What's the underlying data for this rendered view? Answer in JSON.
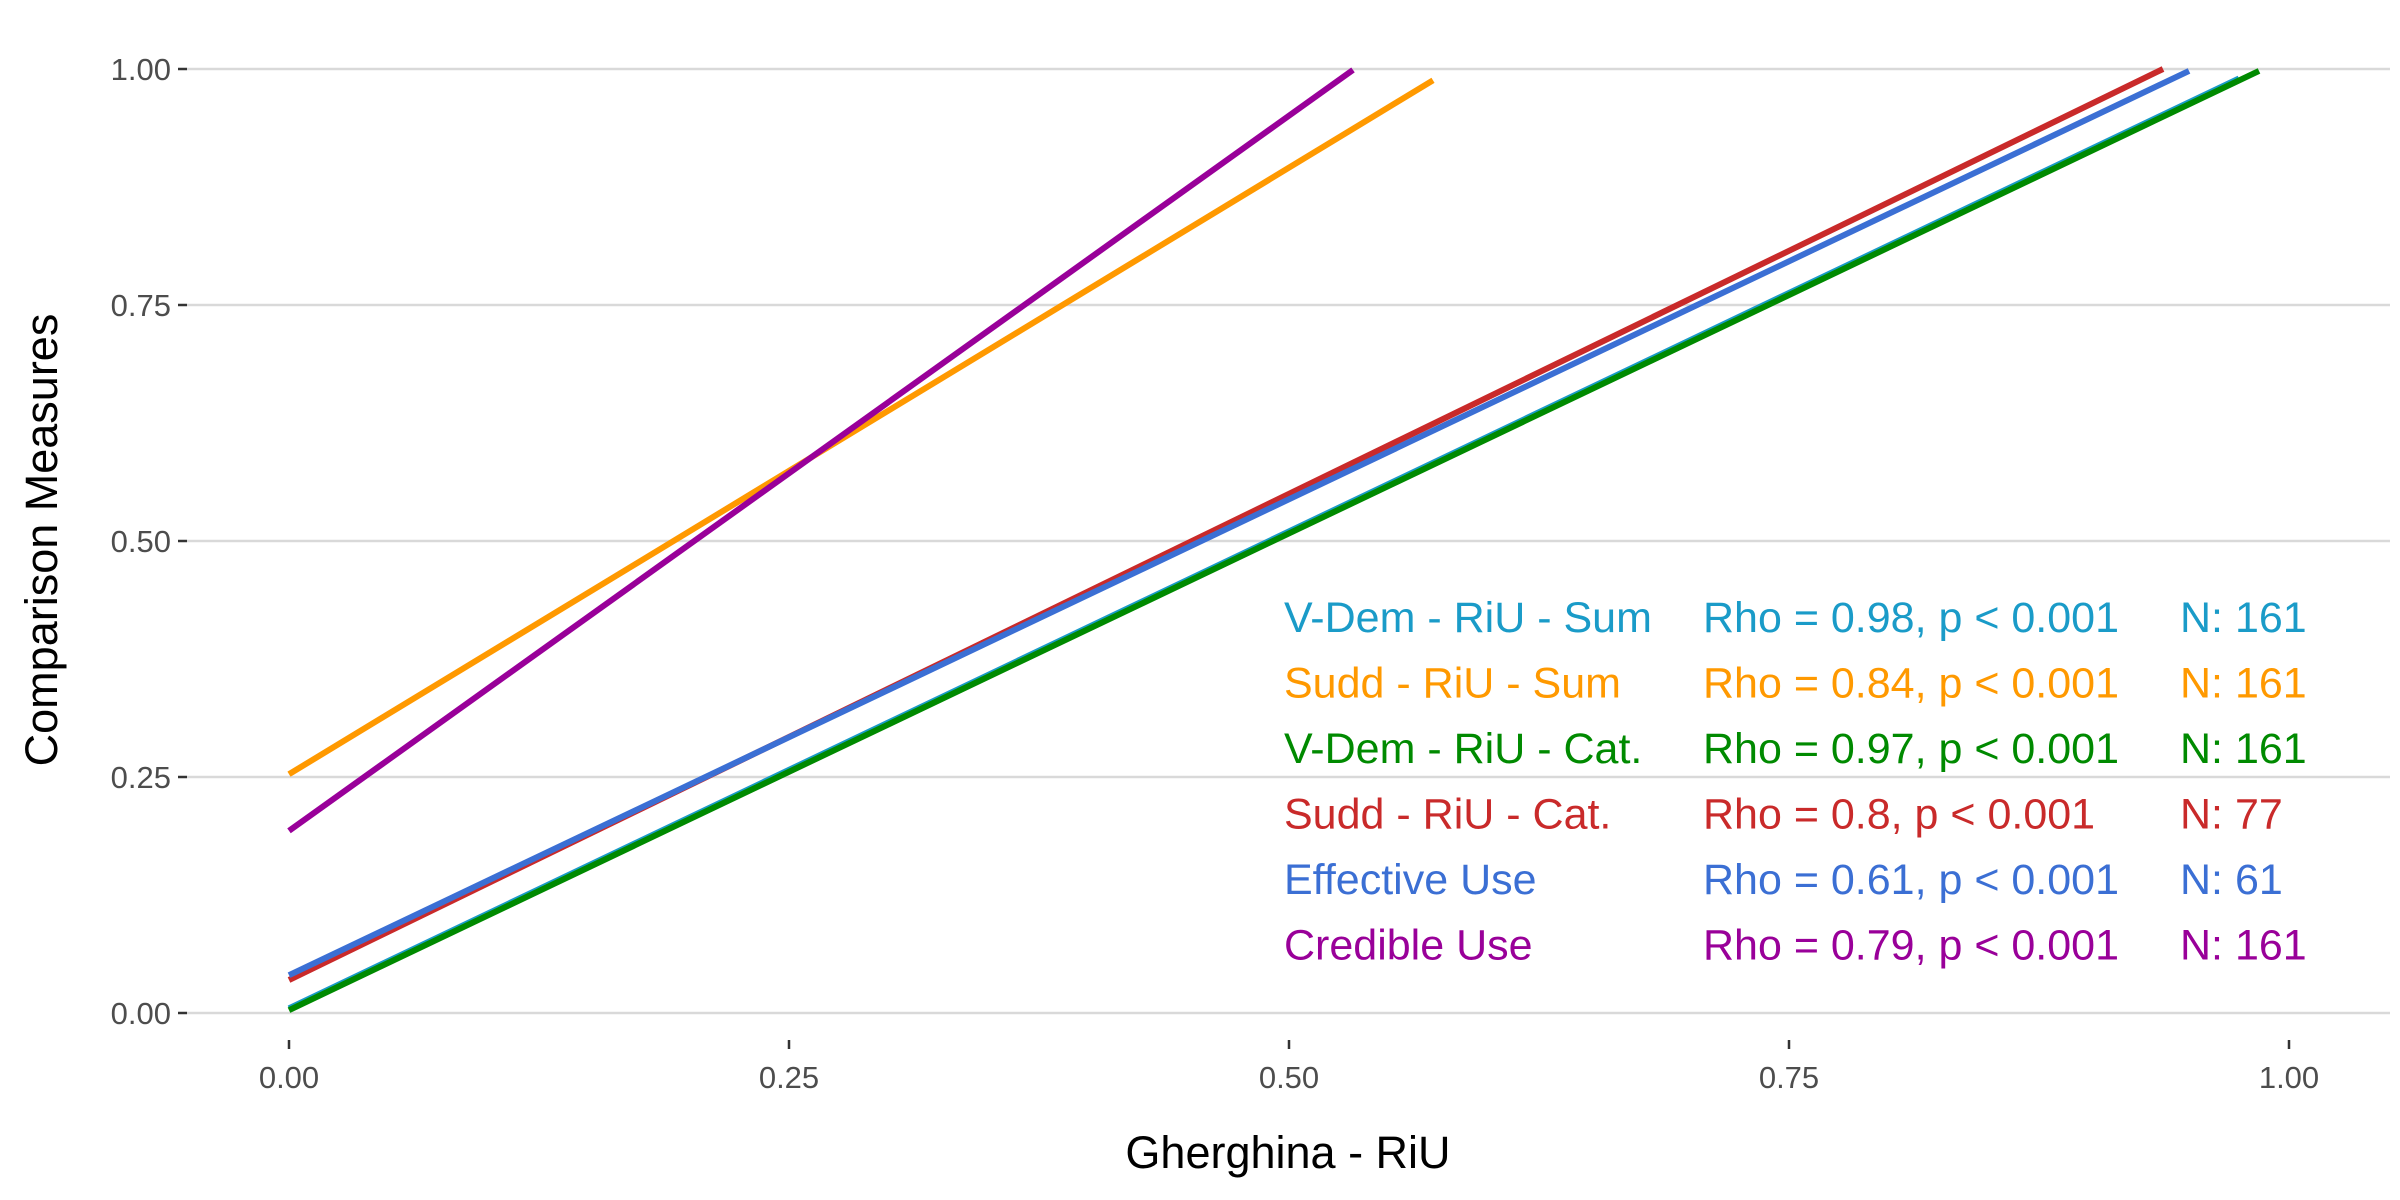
{
  "colors": {
    "grid": "#d9d9d9",
    "tick_label": "#4d4d4d",
    "tick_mark": "#333333",
    "axis_title": "#000000"
  },
  "chart_data": {
    "type": "line",
    "xlabel": "Gherghina - RiU",
    "ylabel": "Comparison Measures",
    "xlim": [
      -0.1,
      1.05
    ],
    "ylim": [
      -0.05,
      1.0
    ],
    "x_ticks": [
      0,
      0.25,
      0.5,
      0.75,
      1
    ],
    "x_tick_labels": [
      "0.00",
      "0.25",
      "0.50",
      "0.75",
      "1.00"
    ],
    "y_ticks": [
      0,
      0.25,
      0.5,
      0.75,
      1
    ],
    "y_tick_labels": [
      "0.00",
      "0.25",
      "0.50",
      "0.75",
      "1.00"
    ],
    "grid": "horizontal",
    "legend_placement": "bottom-right",
    "series": [
      {
        "name": "V-Dem - RiU - Sum",
        "stat": "Rho = 0.98, p < 0.001",
        "n": "N: 161",
        "color": "#1a9bc8",
        "x": [
          0.0,
          0.975
        ],
        "y": [
          0.005,
          0.99
        ]
      },
      {
        "name": "Sudd - RiU - Sum",
        "stat": "Rho = 0.84, p < 0.001",
        "n": "N: 161",
        "color": "#ff9900",
        "x": [
          0.0,
          0.572
        ],
        "y": [
          0.253,
          0.988
        ]
      },
      {
        "name": "V-Dem - RiU - Cat.",
        "stat": "Rho = 0.97, p < 0.001",
        "n": "N: 161",
        "color": "#008a00",
        "x": [
          0.0,
          0.985
        ],
        "y": [
          0.003,
          0.998
        ]
      },
      {
        "name": "Sudd - RiU - Cat.",
        "stat": "Rho = 0.8, p < 0.001",
        "n": "N: 77",
        "color": "#c92a2a",
        "x": [
          0.0,
          0.937
        ],
        "y": [
          0.035,
          1.0
        ]
      },
      {
        "name": "Effective Use",
        "stat": "Rho = 0.61, p < 0.001",
        "n": "N: 61",
        "color": "#3b6fd4",
        "x": [
          0.0,
          0.95
        ],
        "y": [
          0.04,
          0.998
        ]
      },
      {
        "name": "Credible Use",
        "stat": "Rho = 0.79, p < 0.001",
        "n": "N: 161",
        "color": "#990099",
        "x": [
          0.0,
          0.532
        ],
        "y": [
          0.193,
          0.999
        ]
      }
    ]
  }
}
